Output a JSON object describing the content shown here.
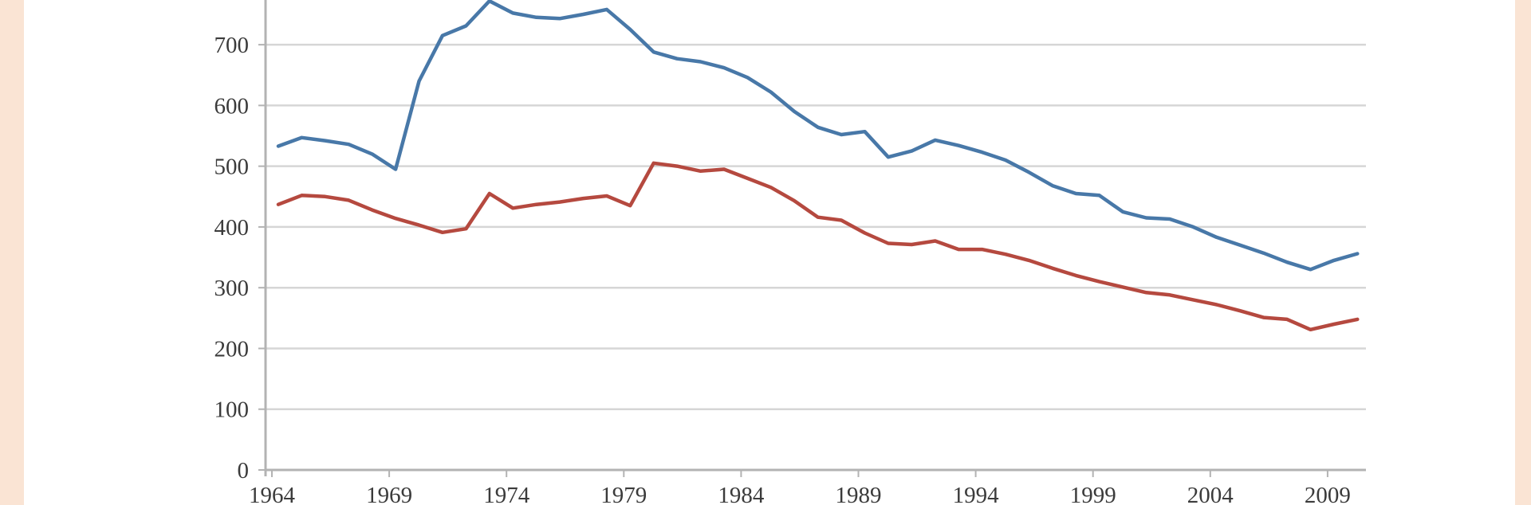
{
  "page": {
    "background": "#ffffff",
    "side_border_color": "#fae4d4"
  },
  "chart_data": {
    "type": "line",
    "title": "",
    "note": "chart cropped at top; no title or legend visible",
    "grid": "horizontal",
    "legend_position": "none-visible",
    "x": [
      1964,
      1965,
      1966,
      1967,
      1968,
      1969,
      1970,
      1971,
      1972,
      1973,
      1974,
      1975,
      1976,
      1977,
      1978,
      1979,
      1980,
      1981,
      1982,
      1983,
      1984,
      1985,
      1986,
      1987,
      1988,
      1989,
      1990,
      1991,
      1992,
      1993,
      1994,
      1995,
      1996,
      1997,
      1998,
      1999,
      2000,
      2001,
      2002,
      2003,
      2004,
      2005,
      2006,
      2007,
      2008,
      2009,
      2010
    ],
    "x_tick_labels": [
      "1964",
      "1969",
      "1974",
      "1979",
      "1984",
      "1989",
      "1994",
      "1999",
      "2004",
      "2009"
    ],
    "y_ticks": [
      0,
      100,
      200,
      300,
      400,
      500,
      600,
      700
    ],
    "y_tick_labels": [
      "0",
      "100",
      "200",
      "300",
      "400",
      "500",
      "600",
      "700"
    ],
    "ylim_visible": [
      0,
      775
    ],
    "series": [
      {
        "name": "blue-series",
        "color": "#4878a8",
        "values": [
          533,
          547,
          542,
          536,
          520,
          495,
          640,
          715,
          731,
          772,
          752,
          745,
          743,
          750,
          758,
          725,
          688,
          677,
          672,
          662,
          646,
          622,
          590,
          564,
          552,
          557,
          515,
          525,
          543,
          534,
          523,
          510,
          490,
          468,
          455,
          452,
          425,
          415,
          413,
          400,
          383,
          370,
          357,
          342,
          330,
          345,
          356
        ]
      },
      {
        "name": "red-series",
        "color": "#b5493f",
        "values": [
          437,
          452,
          450,
          444,
          428,
          414,
          403,
          391,
          397,
          455,
          431,
          437,
          441,
          447,
          451,
          435,
          505,
          500,
          492,
          495,
          480,
          465,
          443,
          416,
          411,
          390,
          373,
          371,
          377,
          363,
          363,
          355,
          345,
          332,
          320,
          310,
          301,
          292,
          288,
          280,
          272,
          262,
          251,
          248,
          231,
          240,
          248
        ]
      }
    ],
    "style": {
      "gridline_color": "#d6d6d6",
      "axis_color": "#b3b3b3",
      "label_color": "#3b3b3b",
      "line_width": 4.5
    }
  }
}
